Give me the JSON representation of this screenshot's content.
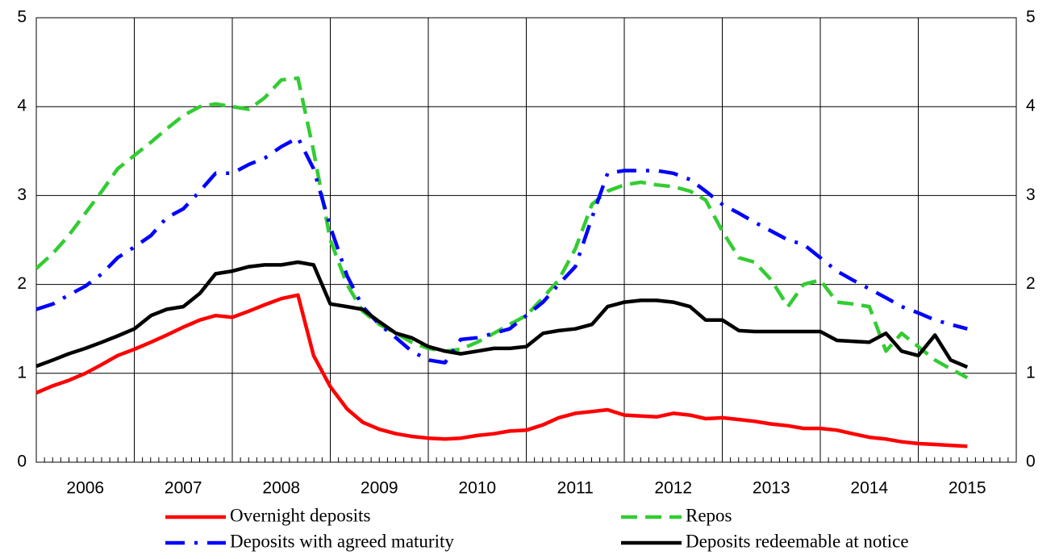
{
  "chart_data": {
    "type": "line",
    "xlim": [
      2006,
      2016
    ],
    "xticks": [
      2006,
      2007,
      2008,
      2009,
      2010,
      2011,
      2012,
      2013,
      2014,
      2015
    ],
    "ylim": [
      0,
      5
    ],
    "yticks": [
      0,
      1,
      2,
      3,
      4,
      5
    ],
    "grid": true,
    "x": [
      2006,
      2006.17,
      2006.33,
      2006.5,
      2006.67,
      2006.83,
      2007,
      2007.17,
      2007.33,
      2007.5,
      2007.67,
      2007.83,
      2008,
      2008.17,
      2008.33,
      2008.5,
      2008.67,
      2008.83,
      2009,
      2009.17,
      2009.33,
      2009.5,
      2009.67,
      2009.83,
      2010,
      2010.17,
      2010.33,
      2010.5,
      2010.67,
      2010.83,
      2011,
      2011.17,
      2011.33,
      2011.5,
      2011.67,
      2011.83,
      2012,
      2012.17,
      2012.33,
      2012.5,
      2012.67,
      2012.83,
      2013,
      2013.17,
      2013.33,
      2013.5,
      2013.67,
      2013.83,
      2014,
      2014.17,
      2014.33,
      2014.5,
      2014.67,
      2014.83,
      2015,
      2015.17,
      2015.33,
      2015.5
    ],
    "series": [
      {
        "name": "Overnight deposits",
        "color": "#ff0000",
        "style": "solid",
        "values": [
          0.78,
          0.86,
          0.92,
          1.0,
          1.1,
          1.2,
          1.27,
          1.35,
          1.43,
          1.52,
          1.6,
          1.65,
          1.63,
          1.7,
          1.77,
          1.84,
          1.88,
          1.2,
          0.85,
          0.6,
          0.45,
          0.37,
          0.32,
          0.29,
          0.27,
          0.26,
          0.27,
          0.3,
          0.32,
          0.35,
          0.36,
          0.42,
          0.5,
          0.55,
          0.57,
          0.59,
          0.53,
          0.52,
          0.51,
          0.55,
          0.53,
          0.49,
          0.5,
          0.48,
          0.46,
          0.43,
          0.41,
          0.38,
          0.38,
          0.36,
          0.32,
          0.28,
          0.26,
          0.23,
          0.21,
          0.2,
          0.19,
          0.18
        ]
      },
      {
        "name": "Repos",
        "color": "#33cc33",
        "style": "dashed",
        "values": [
          2.18,
          2.35,
          2.55,
          2.8,
          3.05,
          3.3,
          3.45,
          3.6,
          3.75,
          3.9,
          4.0,
          4.03,
          4.0,
          3.97,
          4.1,
          4.3,
          4.32,
          3.5,
          2.5,
          2.0,
          1.7,
          1.55,
          1.45,
          1.35,
          1.28,
          1.25,
          1.27,
          1.35,
          1.45,
          1.55,
          1.65,
          1.85,
          2.05,
          2.4,
          2.9,
          3.05,
          3.12,
          3.15,
          3.12,
          3.1,
          3.05,
          2.95,
          2.6,
          2.3,
          2.25,
          2.05,
          1.75,
          2.0,
          2.05,
          1.8,
          1.78,
          1.75,
          1.25,
          1.45,
          1.3,
          1.15,
          1.05,
          0.95
        ]
      },
      {
        "name": "Deposits with agreed maturity",
        "color": "#0000ff",
        "style": "dashdot",
        "values": [
          1.72,
          1.78,
          1.88,
          1.98,
          2.12,
          2.3,
          2.42,
          2.55,
          2.75,
          2.85,
          3.05,
          3.25,
          3.25,
          3.35,
          3.42,
          3.55,
          3.65,
          3.3,
          2.65,
          2.1,
          1.75,
          1.55,
          1.4,
          1.25,
          1.15,
          1.12,
          1.38,
          1.4,
          1.45,
          1.5,
          1.65,
          1.8,
          2.0,
          2.2,
          2.75,
          3.25,
          3.28,
          3.28,
          3.28,
          3.25,
          3.18,
          3.05,
          2.9,
          2.8,
          2.7,
          2.6,
          2.5,
          2.45,
          2.3,
          2.15,
          2.05,
          1.95,
          1.85,
          1.75,
          1.68,
          1.6,
          1.55,
          1.5
        ]
      },
      {
        "name": "Deposits redeemable at notice",
        "color": "#000000",
        "style": "solid",
        "values": [
          1.08,
          1.15,
          1.22,
          1.28,
          1.35,
          1.42,
          1.5,
          1.65,
          1.72,
          1.75,
          1.9,
          2.12,
          2.15,
          2.2,
          2.22,
          2.22,
          2.25,
          2.22,
          1.78,
          1.75,
          1.72,
          1.58,
          1.45,
          1.4,
          1.3,
          1.25,
          1.22,
          1.25,
          1.28,
          1.28,
          1.3,
          1.45,
          1.48,
          1.5,
          1.55,
          1.75,
          1.8,
          1.82,
          1.82,
          1.8,
          1.75,
          1.6,
          1.6,
          1.48,
          1.47,
          1.47,
          1.47,
          1.47,
          1.47,
          1.37,
          1.36,
          1.35,
          1.45,
          1.25,
          1.2,
          1.43,
          1.15,
          1.07
        ]
      }
    ]
  }
}
